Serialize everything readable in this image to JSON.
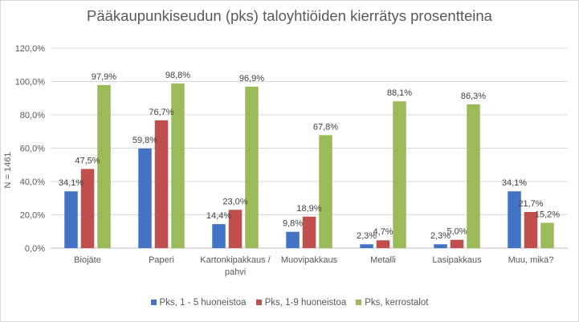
{
  "chart_data": {
    "type": "bar",
    "title": "Pääkaupunkiseudun (pks) taloyhtiöiden kierrätys prosentteina",
    "ylabel": "N = 1461",
    "xlabel": "",
    "ylim": [
      0,
      120
    ],
    "yticks": [
      "0,0%",
      "20,0%",
      "40,0%",
      "60,0%",
      "80,0%",
      "100,0%",
      "120,0%"
    ],
    "grid": true,
    "legend_position": "bottom",
    "categories": [
      [
        "Biojäte"
      ],
      [
        "Paperi"
      ],
      [
        "Kartonkipakkaus /",
        "pahvi"
      ],
      [
        "Muovipakkaus"
      ],
      [
        "Metalli"
      ],
      [
        "Lasipakkaus"
      ],
      [
        "Muu, mikä?"
      ]
    ],
    "series": [
      {
        "name": "Pks, 1 - 5 huoneistoa",
        "color": "#4472c4",
        "values": [
          34.1,
          59.8,
          14.4,
          9.8,
          2.3,
          2.3,
          34.1
        ],
        "labels": [
          "34,1%",
          "59,8%",
          "14,4%",
          "9,8%",
          "2,3%",
          "2,3%",
          "34,1%"
        ]
      },
      {
        "name": "Pks, 1-9 huoneistoa",
        "color": "#c0504d",
        "values": [
          47.5,
          76.7,
          23.0,
          18.9,
          4.7,
          5.0,
          21.7
        ],
        "labels": [
          "47,5%",
          "76,7%",
          "23,0%",
          "18,9%",
          "4,7%",
          "5,0%",
          "21,7%"
        ]
      },
      {
        "name": "Pks, kerrostalot",
        "color": "#9bbb59",
        "values": [
          97.9,
          98.8,
          96.9,
          67.8,
          88.1,
          86.3,
          15.2
        ],
        "labels": [
          "97,9%",
          "98,8%",
          "96,9%",
          "67,8%",
          "88,1%",
          "86,3%",
          "15,2%"
        ]
      }
    ]
  }
}
